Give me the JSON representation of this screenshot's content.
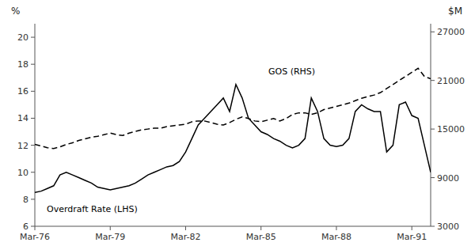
{
  "chart_data": {
    "type": "line",
    "x": [
      0,
      1,
      2,
      3,
      4,
      5,
      6,
      7,
      8,
      9,
      10,
      11,
      12,
      13,
      14,
      15,
      16,
      17,
      18,
      19,
      20,
      21,
      22,
      23,
      24,
      25,
      26,
      27,
      28,
      29,
      30,
      31,
      32,
      33,
      34,
      35,
      36,
      37,
      38,
      39,
      40,
      41,
      42,
      43,
      44,
      45,
      46,
      47,
      48,
      49,
      50,
      51,
      52,
      53,
      54,
      55,
      56,
      57,
      58,
      59,
      60,
      61,
      62,
      63
    ],
    "xlim": [
      0,
      63
    ],
    "xticks": [
      {
        "value": 0,
        "label": "Mar-76"
      },
      {
        "value": 12,
        "label": "Mar-79"
      },
      {
        "value": 24,
        "label": "Mar-82"
      },
      {
        "value": 36,
        "label": "Mar-85"
      },
      {
        "value": 48,
        "label": "Mar-88"
      },
      {
        "value": 60,
        "label": "Mar-91"
      }
    ],
    "ylabel": "%",
    "ylim": [
      6,
      21
    ],
    "yticks": [
      6,
      8,
      10,
      12,
      14,
      16,
      18,
      20
    ],
    "y2label": "$M",
    "y2lim": [
      3000,
      28000
    ],
    "y2ticks": [
      3000,
      9000,
      15000,
      21000,
      27000
    ],
    "series": [
      {
        "name": "Overdraft Rate (LHS)",
        "color": "#000000",
        "line_style": "solid",
        "values": [
          8.5,
          8.6,
          8.8,
          9.0,
          9.8,
          10.0,
          9.8,
          9.6,
          9.4,
          9.2,
          8.9,
          8.8,
          8.7,
          8.8,
          8.9,
          9.0,
          9.2,
          9.5,
          9.8,
          10.0,
          10.2,
          10.4,
          10.5,
          10.8,
          11.5,
          12.5,
          13.5,
          14.0,
          14.5,
          15.0,
          15.5,
          14.5,
          16.5,
          15.5,
          14.0,
          13.5,
          13.0,
          12.8,
          12.5,
          12.3,
          12.0,
          11.8,
          12.0,
          12.5,
          15.5,
          14.5,
          12.5,
          12.0,
          11.9,
          12.0,
          12.5,
          14.5,
          15.0,
          14.7,
          14.5,
          14.5,
          11.5,
          12.0,
          15.0,
          15.2,
          14.2,
          14.0,
          12.0,
          10.0
        ]
      },
      {
        "name": "GOS (RHS)",
        "color": "#000000",
        "line_style": "dashed",
        "axis": "y2",
        "values": [
          13100,
          12900,
          12700,
          12600,
          12800,
          13100,
          13300,
          13600,
          13800,
          14000,
          14100,
          14300,
          14500,
          14300,
          14200,
          14500,
          14700,
          14900,
          15000,
          15100,
          15100,
          15300,
          15400,
          15500,
          15600,
          15900,
          16000,
          16000,
          15800,
          15600,
          15500,
          15800,
          16200,
          16500,
          16300,
          16000,
          15900,
          16100,
          16300,
          16000,
          16300,
          16800,
          17000,
          17000,
          16800,
          17000,
          17400,
          17600,
          17800,
          18000,
          18200,
          18500,
          18800,
          19000,
          19200,
          19500,
          20000,
          20500,
          21000,
          21500,
          22000,
          22500,
          21500,
          21200
        ]
      }
    ]
  }
}
